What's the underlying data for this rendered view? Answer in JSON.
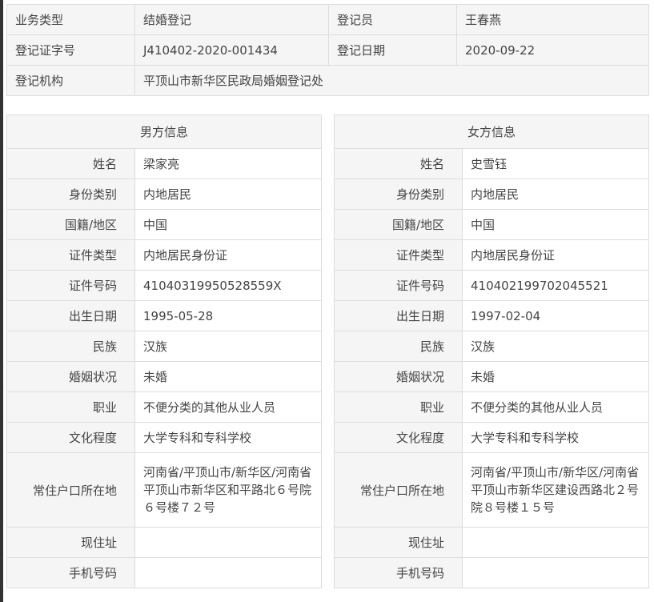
{
  "top": {
    "rows": [
      [
        "业务类型",
        "结婚登记",
        "登记员",
        "王春燕"
      ],
      [
        "登记证字号",
        "J410402-2020-001434",
        "登记日期",
        "2020-09-22"
      ],
      [
        "登记机构",
        "平顶山市新华区民政局婚姻登记处"
      ]
    ]
  },
  "male": {
    "title": "男方信息",
    "values": [
      "梁家亮",
      "内地居民",
      "中国",
      "内地居民身份证",
      "41040319950528559X",
      "1995-05-28",
      "汉族",
      "未婚",
      "不便分类的其他从业人员",
      "大学专科和专科学校",
      "河南省/平顶山市/新华区/河南省平顶山市新华区和平路北６号院６号楼７２号",
      "",
      ""
    ]
  },
  "female": {
    "title": "女方信息",
    "values": [
      "史雪钰",
      "内地居民",
      "中国",
      "内地居民身份证",
      "410402199702045521",
      "1997-02-04",
      "汉族",
      "未婚",
      "不便分类的其他从业人员",
      "大学专科和专科学校",
      "河南省/平顶山市/新华区/河南省平顶山市新华区建设西路北２号院８号楼１５号",
      "",
      ""
    ]
  },
  "labels": [
    "姓名",
    "身份类别",
    "国籍/地区",
    "证件类型",
    "证件号码",
    "出生日期",
    "民族",
    "婚姻状况",
    "职业",
    "文化程度",
    "常住户口所在地",
    "现住址",
    "手机号码"
  ]
}
